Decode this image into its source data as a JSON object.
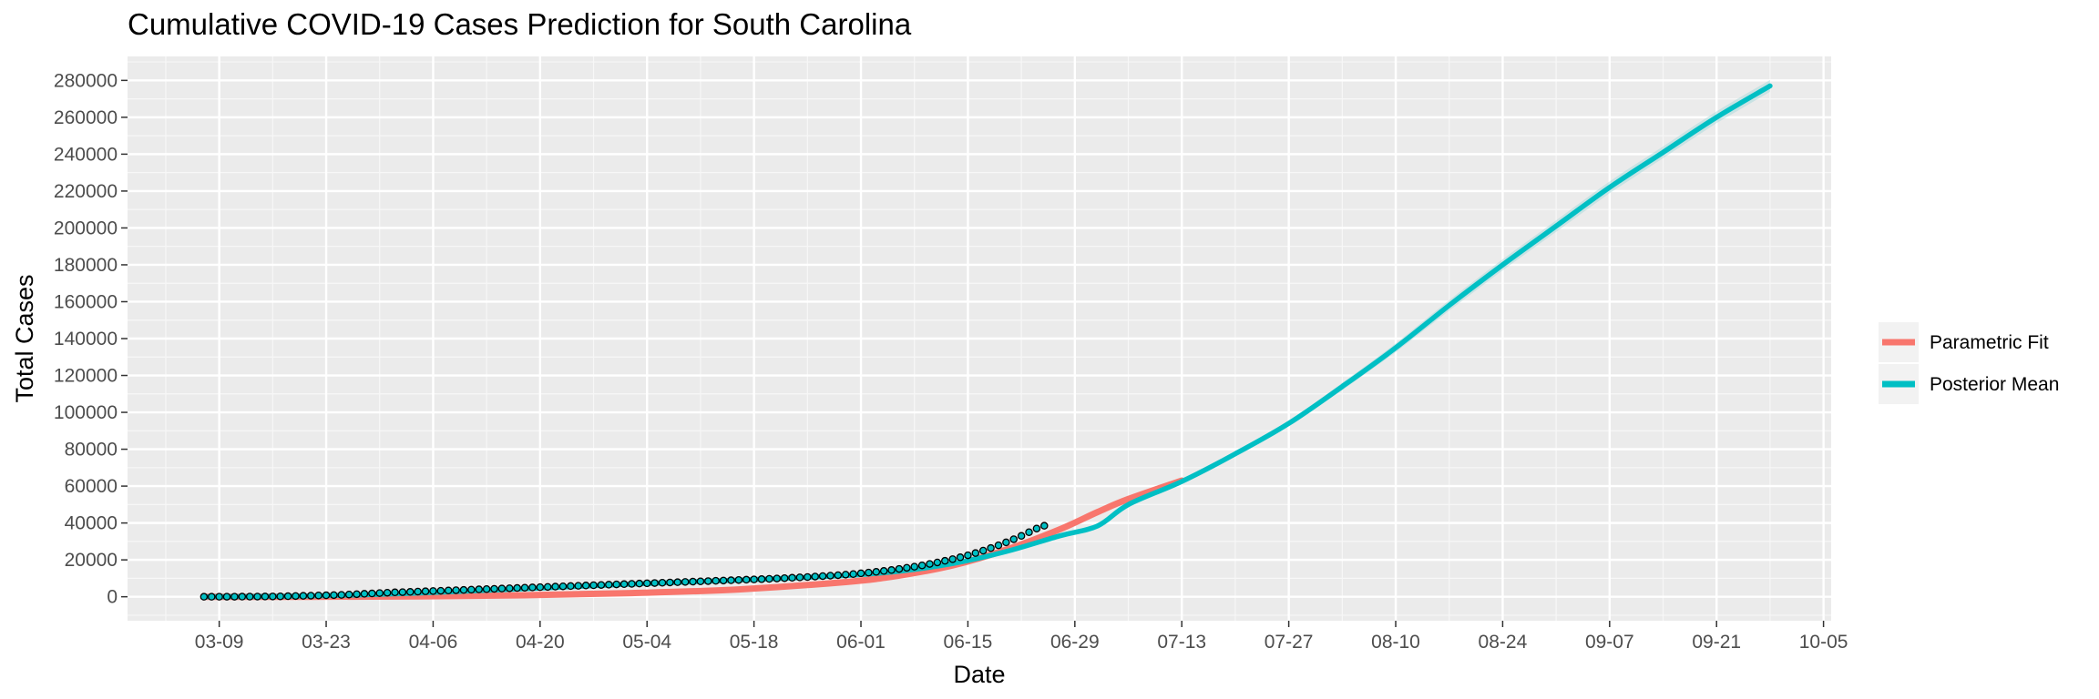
{
  "chart_data": {
    "type": "line",
    "title": "Cumulative COVID-19 Cases Prediction for South Carolina",
    "xlabel": "Date",
    "ylabel": "Total Cases",
    "x_type": "date",
    "xlim": [
      "2020-02-26",
      "2020-10-06"
    ],
    "ylim": [
      -13000,
      293000
    ],
    "x_ticks": [
      "2020-03-09",
      "2020-03-23",
      "2020-04-06",
      "2020-04-20",
      "2020-05-04",
      "2020-05-18",
      "2020-06-01",
      "2020-06-15",
      "2020-06-29",
      "2020-07-13",
      "2020-07-27",
      "2020-08-10",
      "2020-08-24",
      "2020-09-07",
      "2020-09-21",
      "2020-10-05"
    ],
    "x_tick_labels": [
      "03-09",
      "03-23",
      "04-06",
      "04-20",
      "05-04",
      "05-18",
      "06-01",
      "06-15",
      "06-29",
      "07-13",
      "07-27",
      "08-10",
      "08-24",
      "09-07",
      "09-21",
      "10-05"
    ],
    "y_ticks": [
      0,
      20000,
      40000,
      60000,
      80000,
      100000,
      120000,
      140000,
      160000,
      180000,
      200000,
      220000,
      240000,
      260000,
      280000
    ],
    "y_tick_labels": [
      "0",
      "20000",
      "40000",
      "60000",
      "80000",
      "100000",
      "120000",
      "140000",
      "160000",
      "180000",
      "200000",
      "220000",
      "240000",
      "260000",
      "280000"
    ],
    "grid": true,
    "legend_position": "right",
    "series": [
      {
        "name": "Parametric Fit",
        "color": "#F8766D",
        "x": [
          "2020-03-07",
          "2020-03-21",
          "2020-04-04",
          "2020-04-18",
          "2020-05-02",
          "2020-05-16",
          "2020-05-30",
          "2020-06-06",
          "2020-06-13",
          "2020-06-20",
          "2020-06-27",
          "2020-07-02",
          "2020-07-06",
          "2020-07-13"
        ],
        "y": [
          0,
          0,
          200,
          800,
          2000,
          4000,
          8000,
          11500,
          17000,
          25500,
          36500,
          46000,
          53000,
          63000
        ]
      },
      {
        "name": "Posterior Mean",
        "color": "#00BFC4",
        "x": [
          "2020-03-07",
          "2020-03-21",
          "2020-04-04",
          "2020-04-18",
          "2020-05-02",
          "2020-05-16",
          "2020-05-30",
          "2020-06-06",
          "2020-06-13",
          "2020-06-20",
          "2020-06-27",
          "2020-07-02",
          "2020-07-06",
          "2020-07-13",
          "2020-07-20",
          "2020-07-27",
          "2020-08-03",
          "2020-08-10",
          "2020-08-17",
          "2020-08-24",
          "2020-08-31",
          "2020-09-07",
          "2020-09-14",
          "2020-09-21",
          "2020-09-28"
        ],
        "y": [
          0,
          400,
          2000,
          4300,
          6900,
          9000,
          11500,
          13800,
          18000,
          24500,
          33000,
          38500,
          50000,
          62500,
          77500,
          94000,
          114000,
          135000,
          158000,
          180000,
          201000,
          222000,
          241000,
          260000,
          277000
        ]
      }
    ],
    "observed_points": {
      "start": "2020-03-07",
      "y": [
        0,
        10,
        20,
        30,
        45,
        60,
        80,
        100,
        130,
        170,
        220,
        300,
        400,
        500,
        600,
        700,
        800,
        900,
        1000,
        1200,
        1400,
        1600,
        1800,
        2000,
        2200,
        2400,
        2500,
        2650,
        2800,
        2950,
        3100,
        3250,
        3400,
        3550,
        3700,
        3850,
        4000,
        4150,
        4300,
        4450,
        4600,
        4750,
        4900,
        5050,
        5200,
        5350,
        5500,
        5650,
        5800,
        5950,
        6100,
        6250,
        6400,
        6550,
        6700,
        6850,
        7000,
        7150,
        7300,
        7450,
        7600,
        7750,
        7900,
        8050,
        8200,
        8350,
        8500,
        8650,
        8800,
        8950,
        9100,
        9250,
        9400,
        9550,
        9700,
        9900,
        10100,
        10300,
        10500,
        10700,
        10950,
        11200,
        11450,
        11700,
        12000,
        12300,
        12700,
        13100,
        13500,
        14000,
        14500,
        15100,
        15700,
        16300,
        17000,
        17800,
        18600,
        19500,
        20400,
        21400,
        22500,
        23700,
        25000,
        26400,
        27900,
        29500,
        31200,
        33000,
        35000,
        37000,
        38500
      ]
    },
    "credible_band_halfwidth": [
      0,
      0,
      0,
      0,
      0,
      0,
      0,
      0,
      0,
      0,
      0,
      0,
      0,
      600,
      1000,
      1500,
      2000,
      2400,
      2800,
      3000,
      3100,
      3200,
      3200,
      3200,
      3200
    ]
  }
}
